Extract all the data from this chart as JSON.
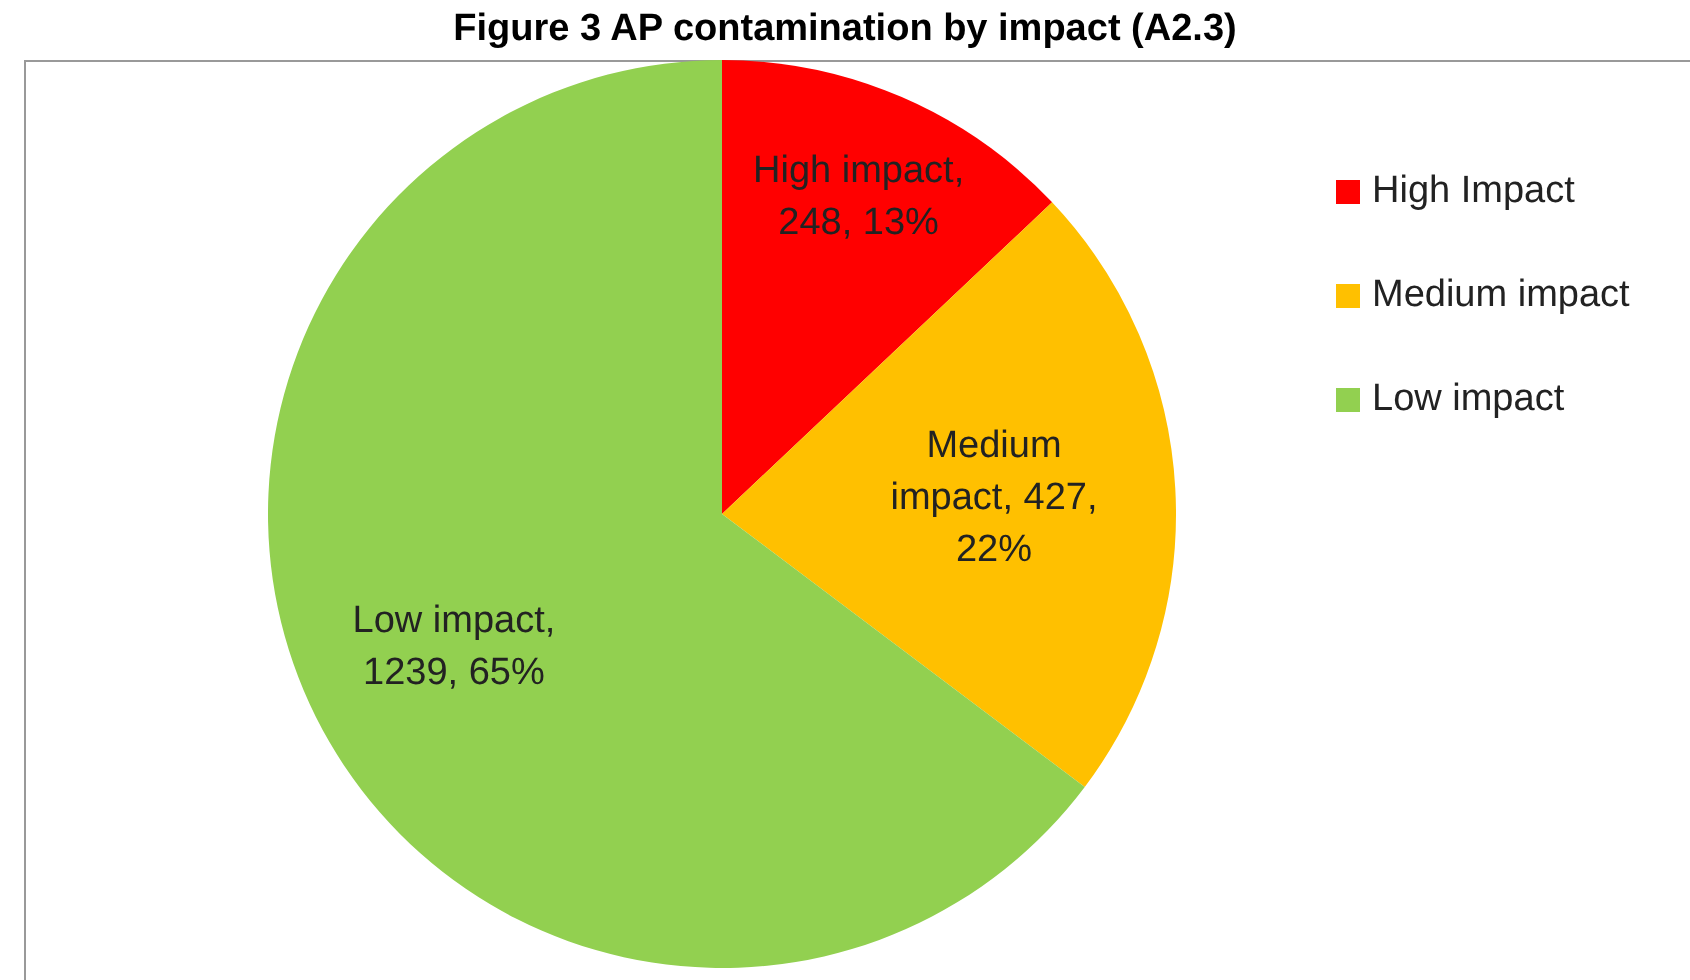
{
  "chart_data": {
    "type": "pie",
    "title": "Figure 3 AP contamination by impact (A2.3)",
    "categories": [
      "High Impact",
      "Medium impact",
      "Low impact"
    ],
    "values": [
      248,
      427,
      1239
    ],
    "colors": [
      "#ff0000",
      "#ffc000",
      "#92d050"
    ],
    "value_labels": [
      "High impact, 248, 13%",
      "Medium impact, 427, 22%",
      "Low impact, 1239, 65%"
    ],
    "legend": "right"
  }
}
